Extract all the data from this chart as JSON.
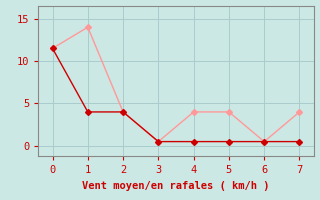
{
  "x": [
    0,
    1,
    2,
    3,
    4,
    5,
    6,
    7
  ],
  "y_dark": [
    11.5,
    4,
    4,
    0.5,
    0.5,
    0.5,
    0.5,
    0.5
  ],
  "y_light": [
    11.5,
    14,
    4,
    0.5,
    4,
    4,
    0.5,
    4
  ],
  "dark_color": "#cc0000",
  "light_color": "#ff9999",
  "bg_color": "#cce8e4",
  "grid_color": "#aacccc",
  "axis_color": "#888888",
  "xlabel": "Vent moyen/en rafales ( km/h )",
  "xlabel_color": "#cc0000",
  "tick_color": "#cc0000",
  "yticks": [
    0,
    5,
    10,
    15
  ],
  "xticks": [
    0,
    1,
    2,
    3,
    4,
    5,
    6,
    7
  ],
  "xlim": [
    -0.4,
    7.4
  ],
  "ylim": [
    -1.2,
    16.5
  ],
  "markersize": 3,
  "linewidth": 1.0,
  "label_fontsize": 7.5
}
